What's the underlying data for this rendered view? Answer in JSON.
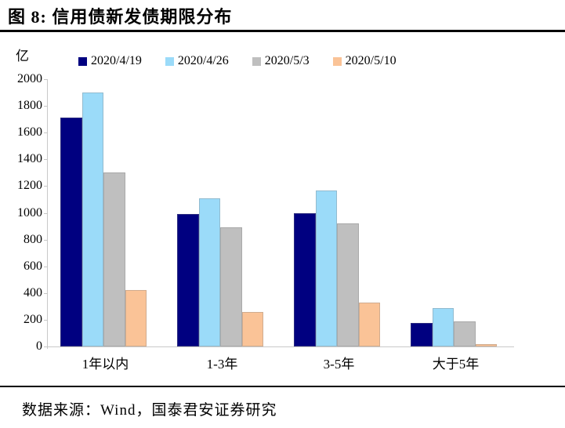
{
  "figure": {
    "title": "图 8:  信用债新发债期限分布",
    "source": "数据来源：Wind，国泰君安证券研究"
  },
  "chart_data": {
    "type": "bar",
    "title": "信用债新发债期限分布",
    "unit_label": "亿",
    "xlabel": "",
    "ylabel": "亿",
    "categories": [
      "1年以内",
      "1-3年",
      "3-5年",
      "大于5年"
    ],
    "series": [
      {
        "name": "2020/4/19",
        "color": "#000080",
        "values": [
          1710,
          990,
          1000,
          175
        ]
      },
      {
        "name": "2020/4/26",
        "color": "#9BDBF9",
        "values": [
          1900,
          1110,
          1165,
          290
        ]
      },
      {
        "name": "2020/5/3",
        "color": "#BFBFBF",
        "values": [
          1300,
          890,
          920,
          190
        ]
      },
      {
        "name": "2020/5/10",
        "color": "#FAC397",
        "values": [
          425,
          260,
          330,
          20
        ]
      }
    ],
    "ylim": [
      0,
      2000
    ],
    "ytick_step": 200,
    "grid": false,
    "legend_position": "top"
  }
}
